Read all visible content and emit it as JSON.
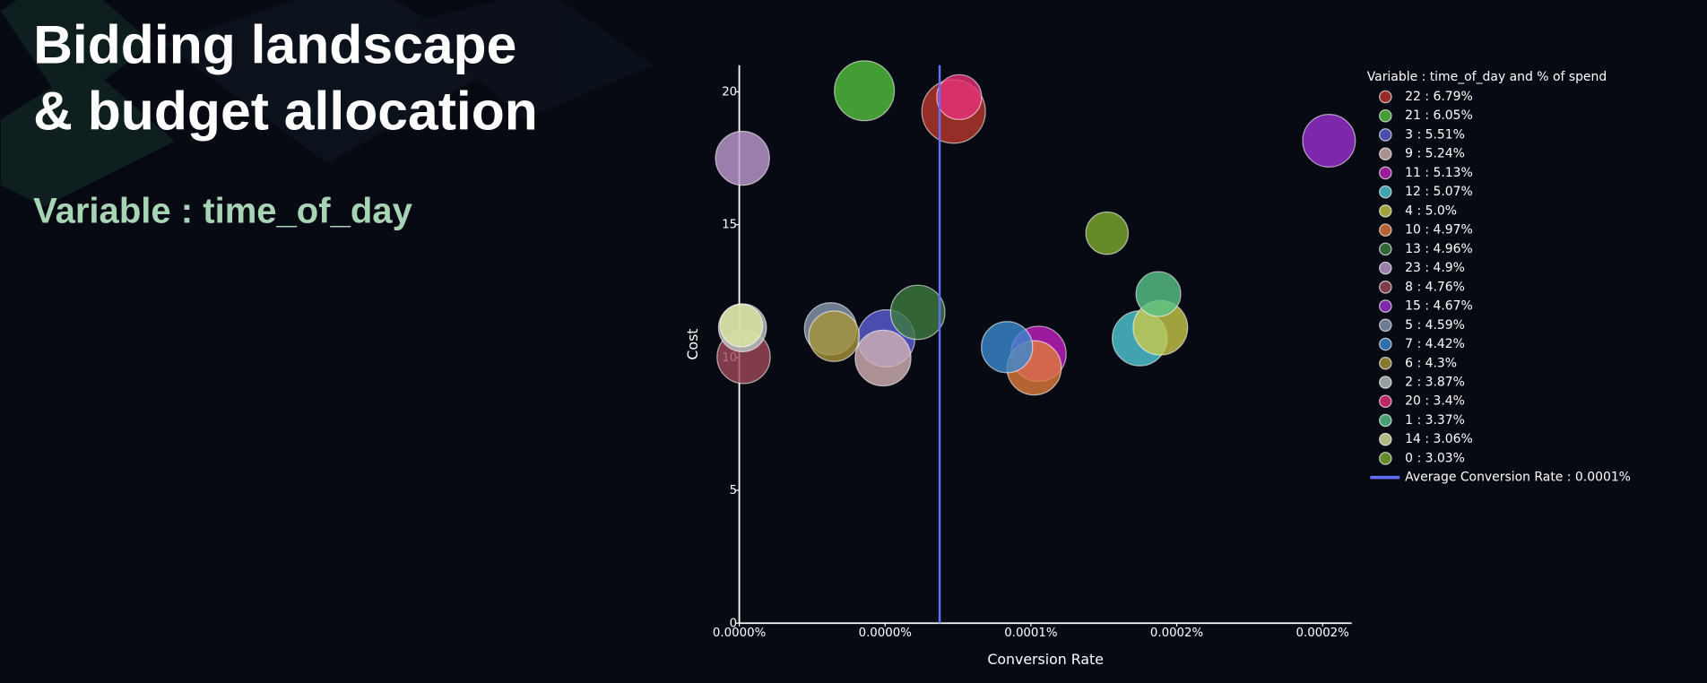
{
  "header": {
    "title_lines": [
      "Bidding landscape",
      "& budget allocation"
    ],
    "subtitle": "Variable : time_of_day"
  },
  "chart_data": {
    "type": "scatter",
    "x_label": "Conversion Rate",
    "y_label": "Cost",
    "legend_title": "Variable : time_of_day and % of spend",
    "xlim": [
      0,
      0.00021
    ],
    "ylim": [
      0,
      21
    ],
    "xticks": [
      {
        "value": 0,
        "label": "0.0000%"
      },
      {
        "value": 5e-05,
        "label": "0.0000%"
      },
      {
        "value": 0.0001,
        "label": "0.0001%"
      },
      {
        "value": 0.00015,
        "label": "0.0002%"
      },
      {
        "value": 0.0002,
        "label": "0.0002%"
      }
    ],
    "yticks": [
      0,
      5,
      10,
      15,
      20
    ],
    "reference_line": {
      "name": "Average Conversion Rate : 0.0001%",
      "value": 6.87e-05,
      "color": "#636efa"
    },
    "series": [
      {
        "name": "22 : 6.79%",
        "color": "#b8372d",
        "x": [
          7.35e-05
        ],
        "values": [
          19.26
        ],
        "sizes": [
          6.79
        ]
      },
      {
        "name": "21 : 6.05%",
        "color": "#52c13d",
        "x": [
          4.29e-05
        ],
        "values": [
          20.04
        ],
        "sizes": [
          6.05
        ]
      },
      {
        "name": "3 : 5.51%",
        "color": "#5a5fd6",
        "x": [
          5.04e-05
        ],
        "values": [
          10.72
        ],
        "sizes": [
          5.51
        ]
      },
      {
        "name": "9 : 5.24%",
        "color": "#d5b2b5",
        "x": [
          4.93e-05
        ],
        "values": [
          9.98
        ],
        "sizes": [
          5.24
        ]
      },
      {
        "name": "11 : 5.13%",
        "color": "#c21fbf",
        "x": [
          0.0001026
        ],
        "values": [
          10.14
        ],
        "sizes": [
          5.13
        ]
      },
      {
        "name": "12 : 5.07%",
        "color": "#4fc9d4",
        "x": [
          0.0001373
        ],
        "values": [
          10.72
        ],
        "sizes": [
          5.07
        ]
      },
      {
        "name": "4 : 5.0%",
        "color": "#c8c84a",
        "x": [
          0.0001444
        ],
        "values": [
          11.12
        ],
        "sizes": [
          5.0
        ]
      },
      {
        "name": "10 : 4.97%",
        "color": "#e07b3a",
        "x": [
          0.0001011
        ],
        "values": [
          9.61
        ],
        "sizes": [
          4.97
        ]
      },
      {
        "name": "13 : 4.96%",
        "color": "#3f7a40",
        "x": [
          6.12e-05
        ],
        "values": [
          11.7
        ],
        "sizes": [
          4.96
        ]
      },
      {
        "name": "23 : 4.9%",
        "color": "#c29bd3",
        "x": [
          1.1e-06
        ],
        "values": [
          17.5
        ],
        "sizes": [
          4.9
        ]
      },
      {
        "name": "8 : 4.76%",
        "color": "#a0485a",
        "x": [
          1.5e-06
        ],
        "values": [
          10.02
        ],
        "sizes": [
          4.76
        ]
      },
      {
        "name": "15 : 4.67%",
        "color": "#9b2fd1",
        "x": [
          0.0002022
        ],
        "values": [
          18.16
        ],
        "sizes": [
          4.67
        ]
      },
      {
        "name": "5 : 4.59%",
        "color": "#8a9ab3",
        "x": [
          3.13e-05
        ],
        "values": [
          11.08
        ],
        "sizes": [
          4.59
        ]
      },
      {
        "name": "7 : 4.42%",
        "color": "#3b8ad1",
        "x": [
          9.18e-05
        ],
        "values": [
          10.39
        ],
        "sizes": [
          4.42
        ]
      },
      {
        "name": "6 : 4.3%",
        "color": "#a8943a",
        "x": [
          3.25e-05
        ],
        "values": [
          10.8
        ],
        "sizes": [
          4.3
        ]
      },
      {
        "name": "2 : 3.87%",
        "color": "#b9c6c4",
        "x": [
          1.1e-06
        ],
        "values": [
          11.12
        ],
        "sizes": [
          3.87
        ]
      },
      {
        "name": "20 : 3.4%",
        "color": "#e8317a",
        "x": [
          7.54e-05
        ],
        "values": [
          19.8
        ],
        "sizes": [
          3.4
        ]
      },
      {
        "name": "1 : 3.37%",
        "color": "#59c48a",
        "x": [
          0.0001437
        ],
        "values": [
          12.39
        ],
        "sizes": [
          3.37
        ]
      },
      {
        "name": "14 : 3.06%",
        "color": "#dce6a0",
        "x": [
          7e-07
        ],
        "values": [
          11.2
        ],
        "sizes": [
          3.06
        ]
      },
      {
        "name": "0 : 3.03%",
        "color": "#7cab2e",
        "x": [
          0.0001261
        ],
        "values": [
          14.68
        ],
        "sizes": [
          3.03
        ]
      }
    ]
  }
}
